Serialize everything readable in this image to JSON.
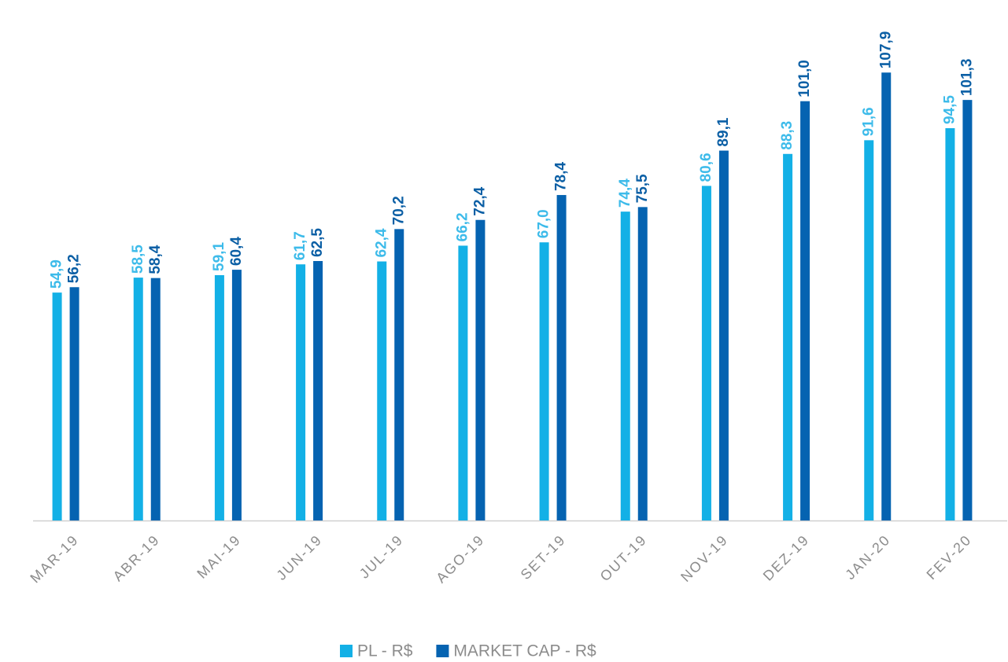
{
  "chart_data": {
    "type": "bar",
    "categories": [
      "MAR-19",
      "ABR-19",
      "MAI-19",
      "JUN-19",
      "JUL-19",
      "AGO-19",
      "SET-19",
      "OUT-19",
      "NOV-19",
      "DEZ-19",
      "JAN-20",
      "FEV-20"
    ],
    "series": [
      {
        "name": "PL - R$",
        "color": "#13b0e6",
        "values": [
          54.9,
          58.5,
          59.1,
          61.7,
          62.4,
          66.2,
          67.0,
          74.4,
          80.6,
          88.3,
          91.6,
          94.5
        ],
        "value_labels": [
          "54,9",
          "58,5",
          "59,1",
          "61,7",
          "62,4",
          "66,2",
          "67,0",
          "74,4",
          "80,6",
          "88,3",
          "91,6",
          "94,5"
        ]
      },
      {
        "name": "MARKET CAP - R$",
        "color": "#0563b1",
        "values": [
          56.2,
          58.4,
          60.4,
          62.5,
          70.2,
          72.4,
          78.4,
          75.5,
          89.1,
          101.0,
          107.9,
          101.3
        ],
        "value_labels": [
          "56,2",
          "58,4",
          "60,4",
          "62,5",
          "70,2",
          "72,4",
          "78,4",
          "75,5",
          "89,1",
          "101,0",
          "107,9",
          "101,3"
        ]
      }
    ],
    "ylim": [
      0,
      125
    ]
  }
}
